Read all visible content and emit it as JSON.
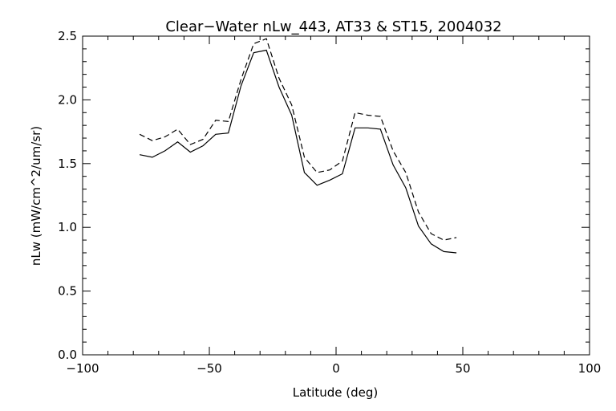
{
  "chart_data": {
    "type": "line",
    "title": "Clear−Water nLw_443, AT33 & ST15, 2004032",
    "xlabel": "Latitude (deg)",
    "ylabel": "nLw (mW/cm^2/um/sr)",
    "xlim": [
      -100,
      100
    ],
    "ylim": [
      0.0,
      2.5
    ],
    "xticks": [
      -100,
      -50,
      0,
      50,
      100
    ],
    "xtick_labels": [
      "−100",
      "−50",
      "0",
      "50",
      "100"
    ],
    "yticks": [
      0.0,
      0.5,
      1.0,
      1.5,
      2.0,
      2.5
    ],
    "ytick_labels": [
      "0.0",
      "0.5",
      "1.0",
      "1.5",
      "2.0",
      "2.5"
    ],
    "grid": false,
    "series": [
      {
        "style": "solid",
        "color": "#000000",
        "x": [
          -77.5,
          -72.5,
          -67.5,
          -62.5,
          -57.5,
          -52.5,
          -47.5,
          -42.5,
          -37.5,
          -32.5,
          -27.5,
          -22.5,
          -17.5,
          -12.5,
          -7.5,
          -2.5,
          2.5,
          7.5,
          12.5,
          17.5,
          22.5,
          27.5,
          32.5,
          37.5,
          42.5,
          47.5
        ],
        "y": [
          1.57,
          1.55,
          1.6,
          1.67,
          1.59,
          1.64,
          1.73,
          1.74,
          2.11,
          2.37,
          2.39,
          2.1,
          1.88,
          1.43,
          1.33,
          1.37,
          1.42,
          1.78,
          1.78,
          1.77,
          1.49,
          1.31,
          1.01,
          0.87,
          0.81,
          0.8
        ]
      },
      {
        "style": "dashed",
        "color": "#000000",
        "x": [
          -77.5,
          -72.5,
          -67.5,
          -62.5,
          -57.5,
          -52.5,
          -47.5,
          -42.5,
          -37.5,
          -32.5,
          -27.5,
          -22.5,
          -17.5,
          -12.5,
          -7.5,
          -2.5,
          2.5,
          7.5,
          12.5,
          17.5,
          22.5,
          27.5,
          32.5,
          37.5,
          42.5,
          47.5
        ],
        "y": [
          1.73,
          1.68,
          1.71,
          1.77,
          1.65,
          1.69,
          1.84,
          1.83,
          2.16,
          2.44,
          2.48,
          2.17,
          1.96,
          1.55,
          1.43,
          1.45,
          1.52,
          1.9,
          1.88,
          1.87,
          1.6,
          1.43,
          1.12,
          0.95,
          0.9,
          0.92
        ]
      }
    ]
  }
}
